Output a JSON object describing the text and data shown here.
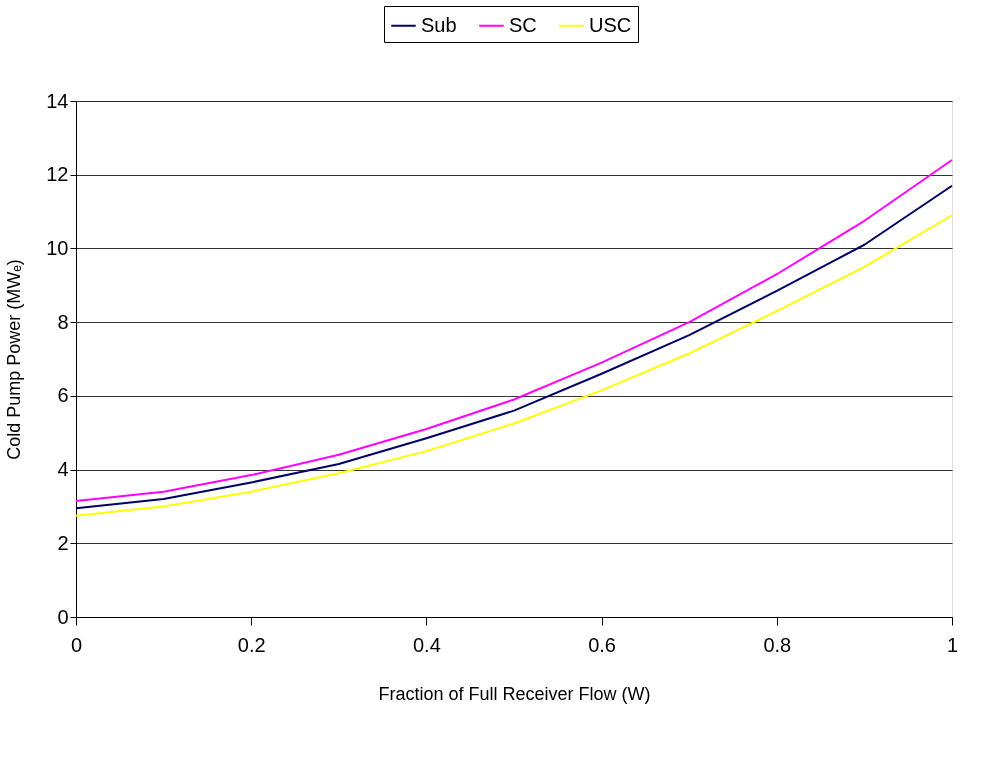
{
  "chart_data": {
    "type": "line",
    "xlabel": "Fraction of Full Receiver Flow (W)",
    "ylabel": "Cold Pump Power (MWₑ)",
    "x": [
      0,
      0.1,
      0.2,
      0.3,
      0.4,
      0.5,
      0.6,
      0.7,
      0.8,
      0.9,
      1
    ],
    "series": [
      {
        "name": "Sub",
        "color": "#000066",
        "values": [
          2.95,
          3.2,
          3.65,
          4.15,
          4.85,
          5.6,
          6.6,
          7.65,
          8.85,
          10.1,
          11.7
        ]
      },
      {
        "name": "SC",
        "color": "#ff00ff",
        "values": [
          3.15,
          3.4,
          3.85,
          4.4,
          5.1,
          5.9,
          6.9,
          8.0,
          9.3,
          10.75,
          12.4
        ]
      },
      {
        "name": "USC",
        "color": "#ffff00",
        "values": [
          2.75,
          3.0,
          3.4,
          3.9,
          4.5,
          5.25,
          6.15,
          7.15,
          8.3,
          9.5,
          10.9
        ]
      }
    ],
    "xlim": [
      0,
      1
    ],
    "xticks": [
      0,
      0.2,
      0.4,
      0.6,
      0.8,
      1
    ],
    "ylim": [
      0,
      14
    ],
    "yticks": [
      0,
      2,
      4,
      6,
      8,
      10,
      12,
      14
    ],
    "grid": "y",
    "legend": "top",
    "marker": "none",
    "line_style": "solid"
  }
}
